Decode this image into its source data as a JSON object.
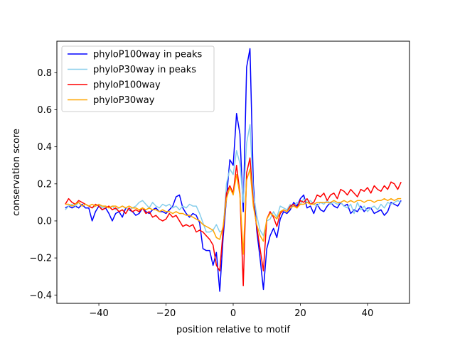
{
  "chart_data": {
    "type": "line",
    "xlabel": "position relative to motif",
    "ylabel": "conservation score",
    "xlim": [
      -52.5,
      52.5
    ],
    "ylim": [
      -0.445,
      0.97
    ],
    "xticks": [
      -40,
      -20,
      0,
      20,
      40
    ],
    "yticks": [
      -0.4,
      -0.2,
      0.0,
      0.2,
      0.4,
      0.6,
      0.8
    ],
    "grid": false,
    "legend_position": "upper-left",
    "series": [
      {
        "name": "phyloP100way in peaks",
        "color": "#0000ff",
        "x": [
          -50,
          -49,
          -48,
          -47,
          -46,
          -45,
          -44,
          -43,
          -42,
          -41,
          -40,
          -39,
          -38,
          -37,
          -36,
          -35,
          -34,
          -33,
          -32,
          -31,
          -30,
          -29,
          -28,
          -27,
          -26,
          -25,
          -24,
          -23,
          -22,
          -21,
          -20,
          -19,
          -18,
          -17,
          -16,
          -15,
          -14,
          -13,
          -12,
          -11,
          -10,
          -9,
          -8,
          -7,
          -6,
          -5,
          -4,
          -3,
          -2,
          -1,
          0,
          1,
          2,
          3,
          4,
          5,
          6,
          7,
          8,
          9,
          10,
          11,
          12,
          13,
          14,
          15,
          16,
          17,
          18,
          19,
          20,
          21,
          22,
          23,
          24,
          25,
          26,
          27,
          28,
          29,
          30,
          31,
          32,
          33,
          34,
          35,
          36,
          37,
          38,
          39,
          40,
          41,
          42,
          43,
          44,
          45,
          46,
          47,
          48,
          49,
          50
        ],
        "values": [
          0.07,
          0.08,
          0.07,
          0.08,
          0.07,
          0.09,
          0.07,
          0.07,
          0.0,
          0.05,
          0.08,
          0.06,
          0.07,
          0.04,
          0.0,
          0.04,
          0.05,
          0.02,
          0.07,
          0.06,
          0.05,
          0.03,
          0.04,
          0.07,
          0.05,
          0.04,
          0.06,
          0.07,
          0.05,
          0.05,
          0.04,
          0.06,
          0.08,
          0.13,
          0.14,
          0.07,
          0.04,
          0.02,
          0.04,
          0.03,
          -0.01,
          -0.15,
          -0.16,
          -0.16,
          -0.24,
          -0.17,
          -0.38,
          -0.09,
          0.12,
          0.33,
          0.3,
          0.58,
          0.47,
          0.05,
          0.83,
          0.93,
          0.2,
          -0.05,
          -0.2,
          -0.37,
          -0.15,
          -0.08,
          -0.04,
          -0.09,
          0.01,
          0.05,
          0.04,
          0.06,
          0.1,
          0.08,
          0.12,
          0.14,
          0.07,
          0.08,
          0.04,
          0.09,
          0.06,
          0.05,
          0.08,
          0.1,
          0.08,
          0.07,
          0.1,
          0.08,
          0.09,
          0.04,
          0.06,
          0.05,
          0.08,
          0.05,
          0.07,
          0.07,
          0.04,
          0.05,
          0.06,
          0.03,
          0.05,
          0.1,
          0.09,
          0.08,
          0.11
        ]
      },
      {
        "name": "phyloP30way in peaks",
        "color": "#87ceeb",
        "x": [
          -50,
          -49,
          -48,
          -47,
          -46,
          -45,
          -44,
          -43,
          -42,
          -41,
          -40,
          -39,
          -38,
          -37,
          -36,
          -35,
          -34,
          -33,
          -32,
          -31,
          -30,
          -29,
          -28,
          -27,
          -26,
          -25,
          -24,
          -23,
          -22,
          -21,
          -20,
          -19,
          -18,
          -17,
          -16,
          -15,
          -14,
          -13,
          -12,
          -11,
          -10,
          -9,
          -8,
          -7,
          -6,
          -5,
          -4,
          -3,
          -2,
          -1,
          0,
          1,
          2,
          3,
          4,
          5,
          6,
          7,
          8,
          9,
          10,
          11,
          12,
          13,
          14,
          15,
          16,
          17,
          18,
          19,
          20,
          21,
          22,
          23,
          24,
          25,
          26,
          27,
          28,
          29,
          30,
          31,
          32,
          33,
          34,
          35,
          36,
          37,
          38,
          39,
          40,
          41,
          42,
          43,
          44,
          45,
          46,
          47,
          48,
          49,
          50
        ],
        "values": [
          0.06,
          0.08,
          0.09,
          0.08,
          0.1,
          0.08,
          0.09,
          0.08,
          0.07,
          0.08,
          0.09,
          0.07,
          0.08,
          0.07,
          0.08,
          0.06,
          0.07,
          0.08,
          0.07,
          0.06,
          0.07,
          0.08,
          0.1,
          0.11,
          0.09,
          0.07,
          0.1,
          0.08,
          0.07,
          0.09,
          0.08,
          0.09,
          0.07,
          0.08,
          0.06,
          0.08,
          0.07,
          0.09,
          0.08,
          0.08,
          0.04,
          -0.01,
          -0.06,
          -0.06,
          -0.05,
          -0.02,
          -0.06,
          -0.05,
          0.2,
          0.28,
          0.25,
          0.38,
          0.31,
          0.1,
          0.42,
          0.52,
          0.15,
          0.03,
          -0.05,
          -0.08,
          0.0,
          0.01,
          0.05,
          0.02,
          0.08,
          0.07,
          0.06,
          0.09,
          0.08,
          0.1,
          0.09,
          0.12,
          0.1,
          0.11,
          0.09,
          0.08,
          0.1,
          0.09,
          0.11,
          0.09,
          0.1,
          0.09,
          0.1,
          0.08,
          0.07,
          0.09,
          0.04,
          0.1,
          0.06,
          0.08,
          0.05,
          0.07,
          0.08,
          0.06,
          0.09,
          0.07,
          0.1,
          0.09,
          0.1,
          0.11,
          0.1
        ]
      },
      {
        "name": "phyloP100way",
        "color": "#ff0000",
        "x": [
          -50,
          -49,
          -48,
          -47,
          -46,
          -45,
          -44,
          -43,
          -42,
          -41,
          -40,
          -39,
          -38,
          -37,
          -36,
          -35,
          -34,
          -33,
          -32,
          -31,
          -30,
          -29,
          -28,
          -27,
          -26,
          -25,
          -24,
          -23,
          -22,
          -21,
          -20,
          -19,
          -18,
          -17,
          -16,
          -15,
          -14,
          -13,
          -12,
          -11,
          -10,
          -9,
          -8,
          -7,
          -6,
          -5,
          -4,
          -3,
          -2,
          -1,
          0,
          1,
          2,
          3,
          4,
          5,
          6,
          7,
          8,
          9,
          10,
          11,
          12,
          13,
          14,
          15,
          16,
          17,
          18,
          19,
          20,
          21,
          22,
          23,
          24,
          25,
          26,
          27,
          28,
          29,
          30,
          31,
          32,
          33,
          34,
          35,
          36,
          37,
          38,
          39,
          40,
          41,
          42,
          43,
          44,
          45,
          46,
          47,
          48,
          49,
          50
        ],
        "values": [
          0.09,
          0.12,
          0.1,
          0.09,
          0.11,
          0.1,
          0.09,
          0.08,
          0.07,
          0.09,
          0.08,
          0.06,
          0.07,
          0.08,
          0.06,
          0.07,
          0.05,
          0.06,
          0.04,
          0.07,
          0.05,
          0.06,
          0.05,
          0.07,
          0.04,
          0.05,
          0.02,
          0.03,
          0.01,
          0.0,
          0.01,
          0.04,
          0.02,
          0.03,
          0.0,
          -0.03,
          -0.02,
          -0.03,
          -0.02,
          -0.06,
          -0.05,
          -0.06,
          -0.08,
          -0.1,
          -0.13,
          -0.24,
          -0.27,
          -0.05,
          0.15,
          0.19,
          0.15,
          0.3,
          0.15,
          -0.35,
          0.26,
          0.34,
          0.1,
          -0.03,
          -0.15,
          -0.27,
          0.01,
          0.05,
          0.02,
          -0.03,
          0.04,
          0.06,
          0.05,
          0.08,
          0.09,
          0.07,
          0.11,
          0.1,
          0.12,
          0.09,
          0.1,
          0.14,
          0.13,
          0.15,
          0.11,
          0.14,
          0.15,
          0.12,
          0.17,
          0.16,
          0.14,
          0.17,
          0.15,
          0.13,
          0.17,
          0.16,
          0.18,
          0.15,
          0.19,
          0.17,
          0.16,
          0.19,
          0.17,
          0.21,
          0.2,
          0.17,
          0.21
        ]
      },
      {
        "name": "phyloP30way",
        "color": "#ffa500",
        "x": [
          -50,
          -49,
          -48,
          -47,
          -46,
          -45,
          -44,
          -43,
          -42,
          -41,
          -40,
          -39,
          -38,
          -37,
          -36,
          -35,
          -34,
          -33,
          -32,
          -31,
          -30,
          -29,
          -28,
          -27,
          -26,
          -25,
          -24,
          -23,
          -22,
          -21,
          -20,
          -19,
          -18,
          -17,
          -16,
          -15,
          -14,
          -13,
          -12,
          -11,
          -10,
          -9,
          -8,
          -7,
          -6,
          -5,
          -4,
          -3,
          -2,
          -1,
          0,
          1,
          2,
          3,
          4,
          5,
          6,
          7,
          8,
          9,
          10,
          11,
          12,
          13,
          14,
          15,
          16,
          17,
          18,
          19,
          20,
          21,
          22,
          23,
          24,
          25,
          26,
          27,
          28,
          29,
          30,
          31,
          32,
          33,
          34,
          35,
          36,
          37,
          38,
          39,
          40,
          41,
          42,
          43,
          44,
          45,
          46,
          47,
          48,
          49,
          50
        ],
        "values": [
          0.09,
          0.09,
          0.08,
          0.09,
          0.1,
          0.08,
          0.09,
          0.08,
          0.09,
          0.08,
          0.09,
          0.08,
          0.08,
          0.07,
          0.08,
          0.08,
          0.07,
          0.08,
          0.07,
          0.08,
          0.07,
          0.07,
          0.06,
          0.07,
          0.06,
          0.07,
          0.06,
          0.06,
          0.05,
          0.06,
          0.05,
          0.05,
          0.04,
          0.05,
          0.04,
          0.04,
          0.03,
          0.03,
          0.02,
          0.01,
          0.0,
          -0.02,
          -0.03,
          -0.04,
          -0.05,
          -0.09,
          -0.1,
          -0.03,
          0.12,
          0.18,
          0.14,
          0.25,
          0.14,
          -0.18,
          0.22,
          0.28,
          0.08,
          -0.02,
          -0.08,
          -0.11,
          0.01,
          0.04,
          0.03,
          0.01,
          0.05,
          0.06,
          0.05,
          0.07,
          0.08,
          0.07,
          0.09,
          0.09,
          0.1,
          0.09,
          0.09,
          0.1,
          0.1,
          0.1,
          0.1,
          0.1,
          0.11,
          0.1,
          0.1,
          0.11,
          0.1,
          0.11,
          0.1,
          0.11,
          0.11,
          0.1,
          0.11,
          0.11,
          0.1,
          0.11,
          0.11,
          0.12,
          0.11,
          0.12,
          0.11,
          0.12,
          0.12
        ]
      }
    ]
  }
}
